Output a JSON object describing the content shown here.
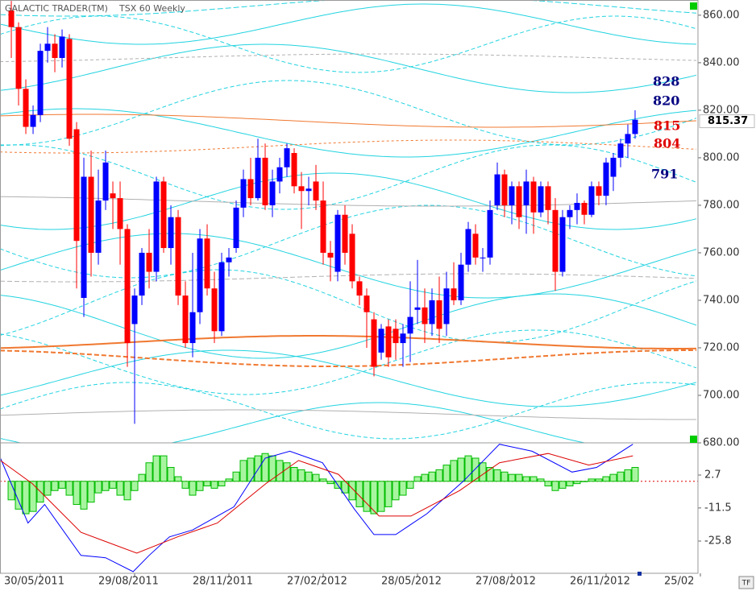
{
  "chart_data": {
    "type": "candlestick",
    "title": "GALACTIC TRADER(TM)",
    "subtitle": "TSX 60 Weekly",
    "x": [
      -4,
      -3,
      -2,
      -1,
      0,
      1,
      2,
      3,
      4,
      5,
      6,
      7,
      8,
      9,
      10,
      11,
      12,
      13,
      14,
      15,
      16,
      17,
      18,
      19,
      20,
      21,
      22,
      23,
      24,
      25,
      26,
      27,
      28,
      29,
      30,
      31,
      32,
      33,
      34,
      35,
      36,
      37,
      38,
      39,
      40,
      41,
      42,
      43,
      44,
      45,
      46,
      47,
      48,
      49,
      50,
      51,
      52,
      53,
      54,
      55,
      56,
      57,
      58,
      59,
      60,
      61,
      62,
      63,
      64,
      65,
      66,
      67,
      68,
      69,
      70,
      71,
      72,
      73,
      74,
      75,
      76,
      77,
      78,
      79,
      80,
      81,
      82
    ],
    "open": [
      862,
      855,
      829,
      813,
      818,
      845,
      848,
      842,
      850,
      812,
      741,
      792,
      760,
      782,
      785,
      783,
      770,
      730,
      742,
      760,
      752,
      790,
      762,
      775,
      742,
      722,
      735,
      766,
      745,
      727,
      756,
      762,
      779,
      791,
      783,
      800,
      780,
      790,
      796,
      802,
      788,
      786,
      790,
      782,
      760,
      752,
      776,
      768,
      748,
      742,
      732,
      718,
      729,
      728,
      722,
      726,
      736,
      737,
      730,
      740,
      730,
      745,
      740,
      755,
      768,
      758,
      758,
      780,
      793,
      780,
      788,
      780,
      790,
      777,
      788,
      778,
      752,
      775,
      778,
      781,
      776,
      788,
      784,
      792,
      800,
      806,
      810
    ],
    "high": [
      866,
      857,
      833,
      822,
      848,
      855,
      852,
      854,
      852,
      815,
      800,
      803,
      795,
      803,
      790,
      790,
      772,
      745,
      762,
      770,
      792,
      792,
      780,
      778,
      748,
      760,
      770,
      772,
      752,
      760,
      762,
      782,
      795,
      800,
      808,
      806,
      795,
      800,
      806,
      804,
      794,
      792,
      797,
      790,
      765,
      778,
      780,
      772,
      750,
      745,
      735,
      730,
      732,
      732,
      730,
      748,
      757,
      745,
      745,
      750,
      752,
      756,
      760,
      773,
      772,
      762,
      782,
      798,
      795,
      790,
      790,
      795,
      792,
      790,
      790,
      783,
      778,
      780,
      785,
      782,
      790,
      790,
      800,
      802,
      808,
      814,
      820
    ],
    "low": [
      842,
      822,
      810,
      810,
      815,
      840,
      836,
      838,
      805,
      745,
      733,
      750,
      755,
      778,
      770,
      755,
      712,
      688,
      738,
      745,
      748,
      760,
      755,
      738,
      720,
      716,
      730,
      742,
      722,
      725,
      750,
      760,
      775,
      780,
      782,
      778,
      775,
      785,
      792,
      785,
      770,
      780,
      778,
      755,
      748,
      748,
      755,
      745,
      738,
      720,
      708,
      715,
      712,
      715,
      712,
      714,
      730,
      722,
      725,
      722,
      725,
      738,
      738,
      752,
      755,
      752,
      755,
      778,
      775,
      772,
      770,
      768,
      768,
      775,
      772,
      744,
      750,
      770,
      772,
      772,
      775,
      780,
      780,
      786,
      796,
      800,
      808
    ],
    "close": [
      855,
      829,
      813,
      818,
      845,
      848,
      842,
      851,
      808,
      765,
      792,
      760,
      782,
      798,
      783,
      770,
      722,
      742,
      760,
      752,
      790,
      762,
      775,
      742,
      722,
      735,
      766,
      745,
      727,
      756,
      758,
      779,
      791,
      783,
      800,
      780,
      790,
      796,
      804,
      788,
      786,
      787,
      782,
      760,
      758,
      776,
      760,
      748,
      742,
      735,
      712,
      728,
      716,
      722,
      726,
      733,
      737,
      730,
      740,
      728,
      745,
      740,
      755,
      770,
      758,
      758,
      778,
      793,
      780,
      788,
      775,
      790,
      777,
      788,
      778,
      752,
      775,
      778,
      781,
      776,
      788,
      784,
      798,
      800,
      806,
      810,
      816
    ],
    "up_color": "#0000ff",
    "down_color": "#ff0000",
    "xlim": [
      -5.56,
      90.67
    ],
    "xticks": [
      {
        "value": 0,
        "label": "30/05/2011"
      },
      {
        "value": 13,
        "label": "29/08/2011"
      },
      {
        "value": 26,
        "label": "28/11/2011"
      },
      {
        "value": 39,
        "label": "27/02/2012"
      },
      {
        "value": 52,
        "label": "28/05/2012"
      },
      {
        "value": 65,
        "label": "27/08/2012"
      },
      {
        "value": 78,
        "label": "26/11/2012"
      },
      {
        "value": 91,
        "label": "25/02"
      }
    ],
    "ylim": [
      680,
      866.4
    ],
    "yticks": [
      {
        "value": 680,
        "label": "680.00"
      },
      {
        "value": 700,
        "label": "700.00"
      },
      {
        "value": 720,
        "label": "720.00"
      },
      {
        "value": 740,
        "label": "740.00"
      },
      {
        "value": 760,
        "label": "760.00"
      },
      {
        "value": 780,
        "label": "780.00"
      },
      {
        "value": 800,
        "label": "800.00"
      },
      {
        "value": 820,
        "label": "820.00"
      },
      {
        "value": 840,
        "label": "840.00"
      },
      {
        "value": 860,
        "label": "860.00"
      }
    ],
    "annotations": [
      {
        "value": 828,
        "color": "#000080"
      },
      {
        "value": 820,
        "color": "#000080"
      },
      {
        "value": 815,
        "color": "#e00000"
      },
      {
        "value": 804,
        "color": "#e00000"
      },
      {
        "value": 791,
        "color": "#000080"
      }
    ],
    "last_price": 815.37,
    "indicator": {
      "type": "macd",
      "ylim": [
        -39.7,
        16.6
      ],
      "yticks": [
        2.7,
        -11.5,
        -25.8
      ],
      "histogram": {
        "color": "#00bb00",
        "values": [
          -8,
          -12,
          -14,
          -13,
          -9,
          -6,
          -4,
          -3,
          -6,
          -10,
          -12,
          -9,
          -5,
          -4,
          -3,
          -6,
          -8,
          -4,
          3,
          8,
          11,
          11,
          6,
          2,
          -3,
          -6,
          -4,
          -2,
          -3,
          -2,
          1,
          4,
          9,
          10,
          11,
          12,
          11,
          9,
          8,
          6,
          5,
          4,
          3,
          1,
          -1,
          -3,
          -5,
          -8,
          -11,
          -13,
          -14,
          -13,
          -11,
          -8,
          -6,
          -3,
          2,
          3,
          4,
          5,
          7,
          9,
          10,
          11,
          10,
          8,
          6,
          5,
          4,
          3,
          3,
          2,
          2,
          1,
          -2,
          -4,
          -3,
          -2,
          -1,
          0,
          1,
          1,
          2,
          3,
          4,
          5,
          6
        ]
      },
      "series": [
        {
          "color": "#0000ff",
          "x": [
            -5.5,
            -1.7,
            0.6,
            5.6,
            9,
            12.8,
            15,
            17.8,
            21,
            26.7,
            31,
            34.4,
            38.9,
            43.3,
            46,
            49,
            53.3,
            58.3,
            63.3,
            67.8,
            73.3,
            76.7,
            81.7
          ],
          "values": [
            10,
            -18,
            -10,
            -32,
            -33,
            -39,
            -32,
            -24,
            -21,
            -11,
            10,
            13,
            8,
            -12,
            -23,
            -23,
            -14,
            0,
            16,
            13,
            4,
            6,
            16
          ]
        },
        {
          "color": "#dd0000",
          "x": [
            -5.5,
            -1.1,
            5.6,
            13.3,
            18.9,
            24.4,
            31.1,
            35.6,
            41.1,
            46.7,
            51.1,
            57.8,
            63.3,
            70,
            75.6,
            81.7
          ],
          "values": [
            9,
            -1,
            -22,
            -31,
            -24,
            -18,
            -1,
            9,
            3,
            -15,
            -15,
            -4,
            8,
            12,
            7,
            11
          ]
        }
      ]
    }
  }
}
